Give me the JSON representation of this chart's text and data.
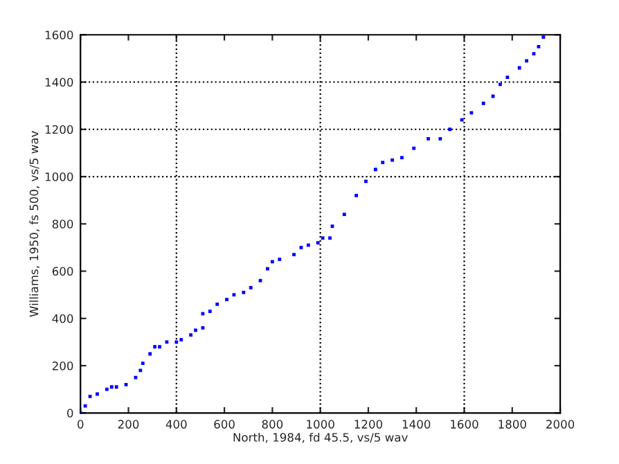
{
  "chart_data": {
    "type": "scatter",
    "xlabel": "North, 1984, fd 45.5, vs/5 wav",
    "ylabel": "Williams, 1950, fs 500, vs/5 wav",
    "x": [
      0,
      20,
      40,
      70,
      110,
      130,
      150,
      190,
      230,
      250,
      260,
      290,
      310,
      330,
      360,
      400,
      420,
      460,
      480,
      510,
      510,
      540,
      570,
      610,
      640,
      680,
      710,
      750,
      780,
      800,
      830,
      890,
      920,
      950,
      990,
      1010,
      1040,
      1050,
      1100,
      1150,
      1190,
      1230,
      1260,
      1300,
      1340,
      1390,
      1450,
      1500,
      1540,
      1590,
      1630,
      1680,
      1720,
      1750,
      1780,
      1830,
      1860,
      1890,
      1910,
      1930
    ],
    "series": [
      {
        "color": "#0000ff",
        "values": [
          0,
          30,
          70,
          80,
          100,
          110,
          110,
          120,
          150,
          180,
          210,
          250,
          280,
          280,
          300,
          300,
          310,
          330,
          350,
          360,
          420,
          430,
          460,
          480,
          500,
          510,
          530,
          560,
          610,
          640,
          650,
          670,
          700,
          710,
          720,
          740,
          740,
          790,
          840,
          920,
          980,
          1030,
          1060,
          1070,
          1080,
          1120,
          1160,
          1160,
          1200,
          1240,
          1270,
          1310,
          1340,
          1390,
          1420,
          1460,
          1490,
          1520,
          1550,
          1590
        ]
      }
    ],
    "marker": "square",
    "xlim": [
      0,
      2000
    ],
    "ylim": [
      0,
      1600
    ],
    "xticks": [
      0,
      200,
      400,
      600,
      800,
      1000,
      1200,
      1400,
      1600,
      1800,
      2000
    ],
    "yticks": [
      0,
      200,
      400,
      600,
      800,
      1000,
      1200,
      1400,
      1600
    ],
    "ref_lines": [
      {
        "axis": "x",
        "value": 400,
        "color": "#000000",
        "line_style": "dotted"
      },
      {
        "axis": "x",
        "value": 1000,
        "color": "#000000",
        "line_style": "dotted"
      },
      {
        "axis": "x",
        "value": 1600,
        "color": "#000000",
        "line_style": "dotted"
      },
      {
        "axis": "y",
        "value": 1000,
        "color": "#000000",
        "line_style": "dotted"
      },
      {
        "axis": "y",
        "value": 1200,
        "color": "#000000",
        "line_style": "dotted"
      },
      {
        "axis": "y",
        "value": 1400,
        "color": "#000000",
        "line_style": "dotted"
      }
    ],
    "grid": false,
    "legend": false
  }
}
